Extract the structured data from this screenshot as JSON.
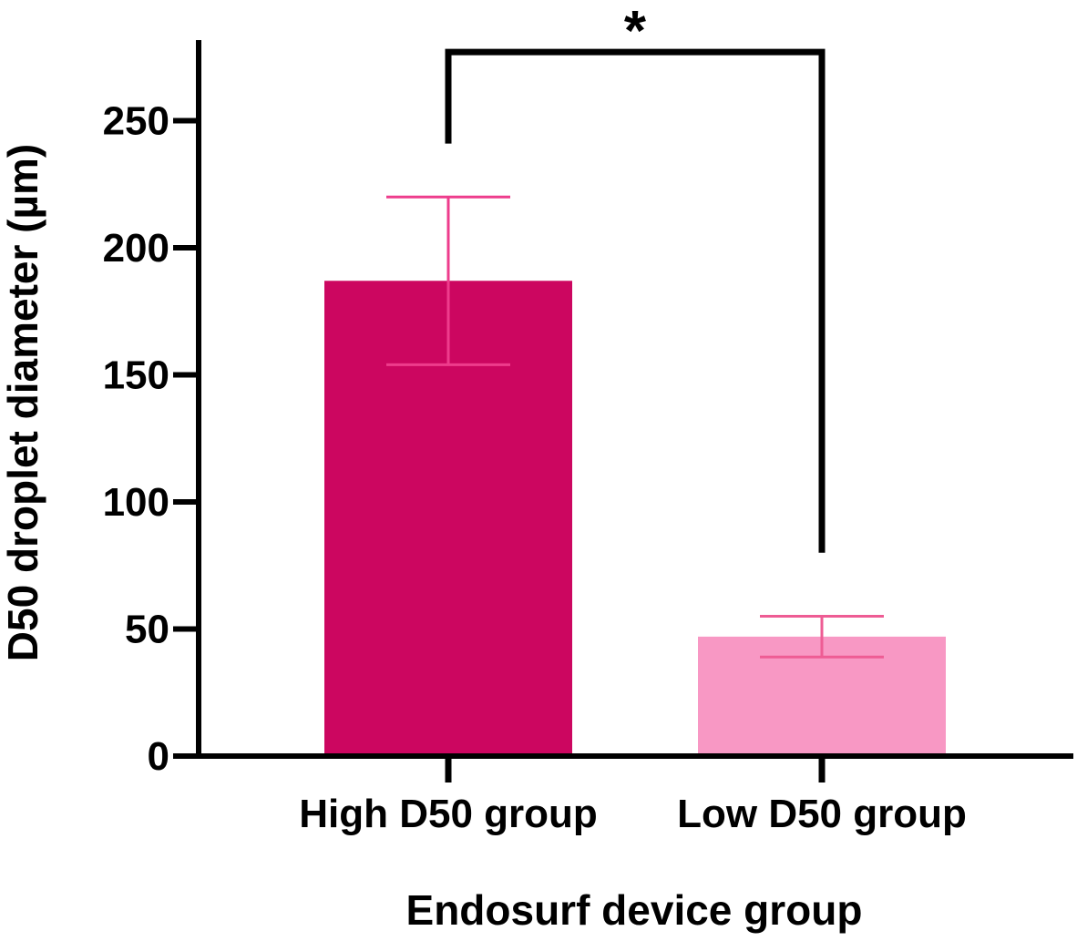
{
  "chart_data": {
    "type": "bar",
    "title": "",
    "xlabel": "Endosurf device group",
    "ylabel": "D50 droplet diameter (µm)",
    "ylim": [
      0,
      280
    ],
    "yticks": [
      0,
      50,
      100,
      150,
      200,
      250
    ],
    "ytick_labels": [
      "0",
      "50",
      "100",
      "150",
      "200",
      "250"
    ],
    "categories": [
      "High D50 group",
      "Low D50 group"
    ],
    "values": [
      187,
      47
    ],
    "error_low": [
      154,
      39
    ],
    "error_high": [
      220,
      55
    ],
    "bar_colors": [
      "#cc0660",
      "#f898c4"
    ],
    "error_colors": [
      "#ee3c8c",
      "#ee5c94"
    ],
    "grid": false,
    "legend": "none",
    "annotations": [
      {
        "type": "significance-bracket",
        "between": [
          "High D50 group",
          "Low D50 group"
        ],
        "label": "*",
        "top_value": 277,
        "left_bottom_value": 241,
        "right_bottom_value": 80
      }
    ]
  }
}
